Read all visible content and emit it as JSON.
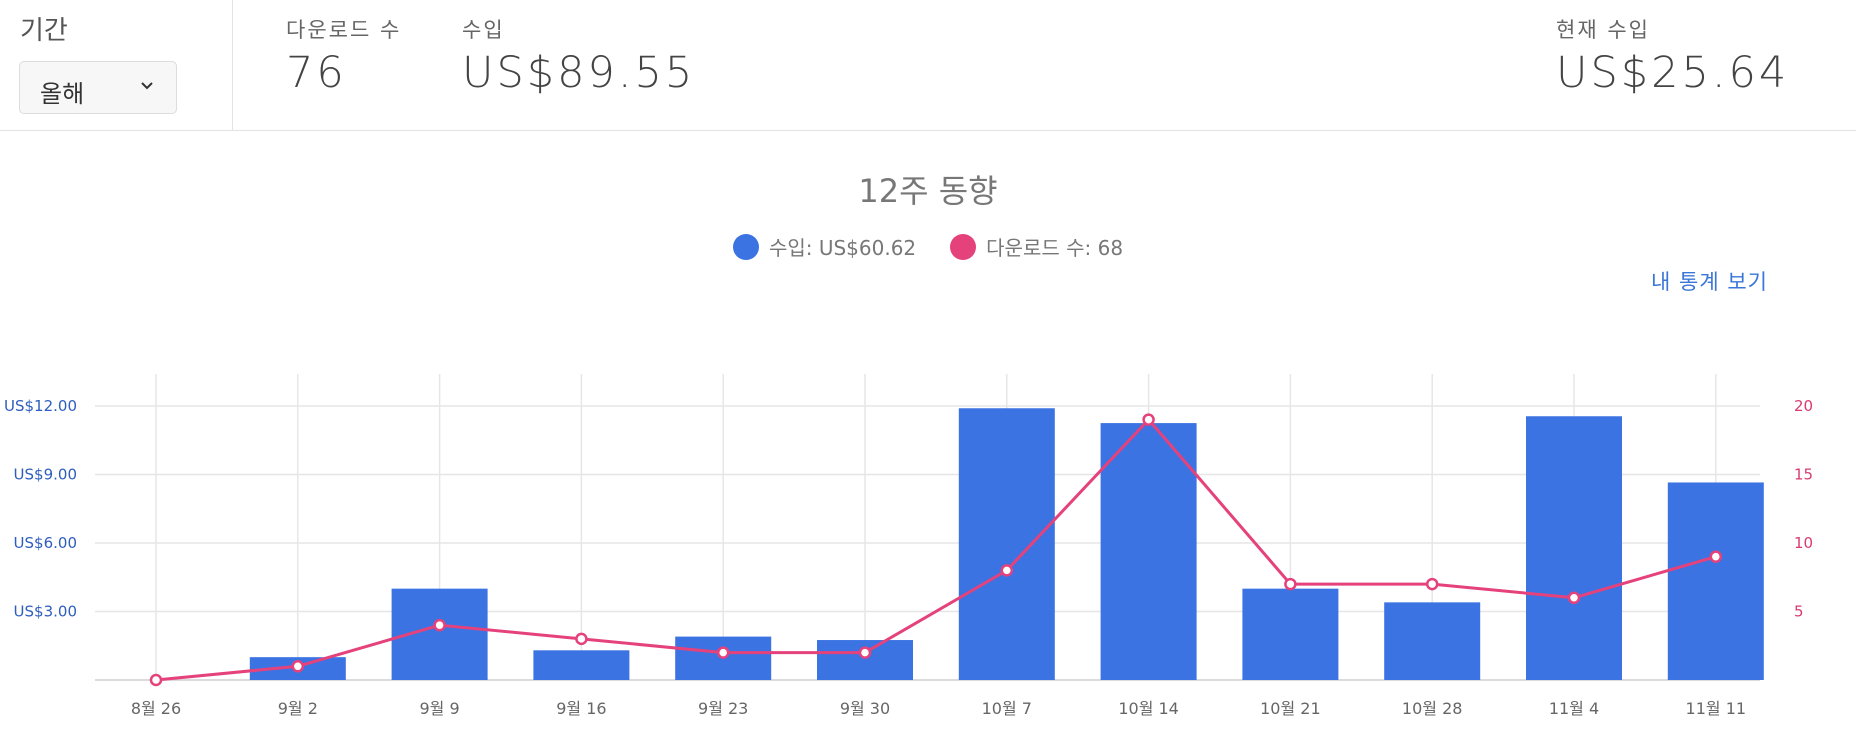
{
  "period": {
    "label": "기간",
    "selected": "올해"
  },
  "stats": {
    "downloads": {
      "label": "다운로드 수",
      "value": "76"
    },
    "earnings": {
      "label": "수입",
      "value": "US$89.55"
    },
    "current": {
      "label": "현재 수입",
      "value": "US$25.64"
    }
  },
  "link_label": "내 통계 보기",
  "colors": {
    "earnings": "#3b73e2",
    "downloads": "#e5427c"
  },
  "chart_data": {
    "type": "bar",
    "title": "12주 동향",
    "categories": [
      "8월 26",
      "9월 2",
      "9월 9",
      "9월 16",
      "9월 23",
      "9월 30",
      "10월 7",
      "10월 14",
      "10월 21",
      "10월 28",
      "11월 4",
      "11월 11"
    ],
    "series": [
      {
        "name": "수입",
        "legend": "수입: US$60.62",
        "type": "bar",
        "axis": "left",
        "values": [
          0,
          1.0,
          4.0,
          1.3,
          1.9,
          1.75,
          11.9,
          11.25,
          4.0,
          3.4,
          11.55,
          8.65
        ]
      },
      {
        "name": "다운로드 수",
        "legend": "다운로드 수: 68",
        "type": "line",
        "axis": "right",
        "values": [
          0,
          1,
          4,
          3,
          2,
          2,
          8,
          19,
          7,
          7,
          6,
          9
        ]
      }
    ],
    "y_left": {
      "ticks": [
        "US$3.00",
        "US$6.00",
        "US$9.00",
        "US$12.00"
      ],
      "tick_values": [
        3,
        6,
        9,
        12
      ],
      "range": [
        0,
        13.4
      ]
    },
    "y_right": {
      "ticks": [
        "5",
        "10",
        "15",
        "20"
      ],
      "tick_values": [
        5,
        10,
        15,
        20
      ],
      "range": [
        0,
        22.33
      ]
    },
    "grid": true,
    "legend_position": "top-center"
  }
}
